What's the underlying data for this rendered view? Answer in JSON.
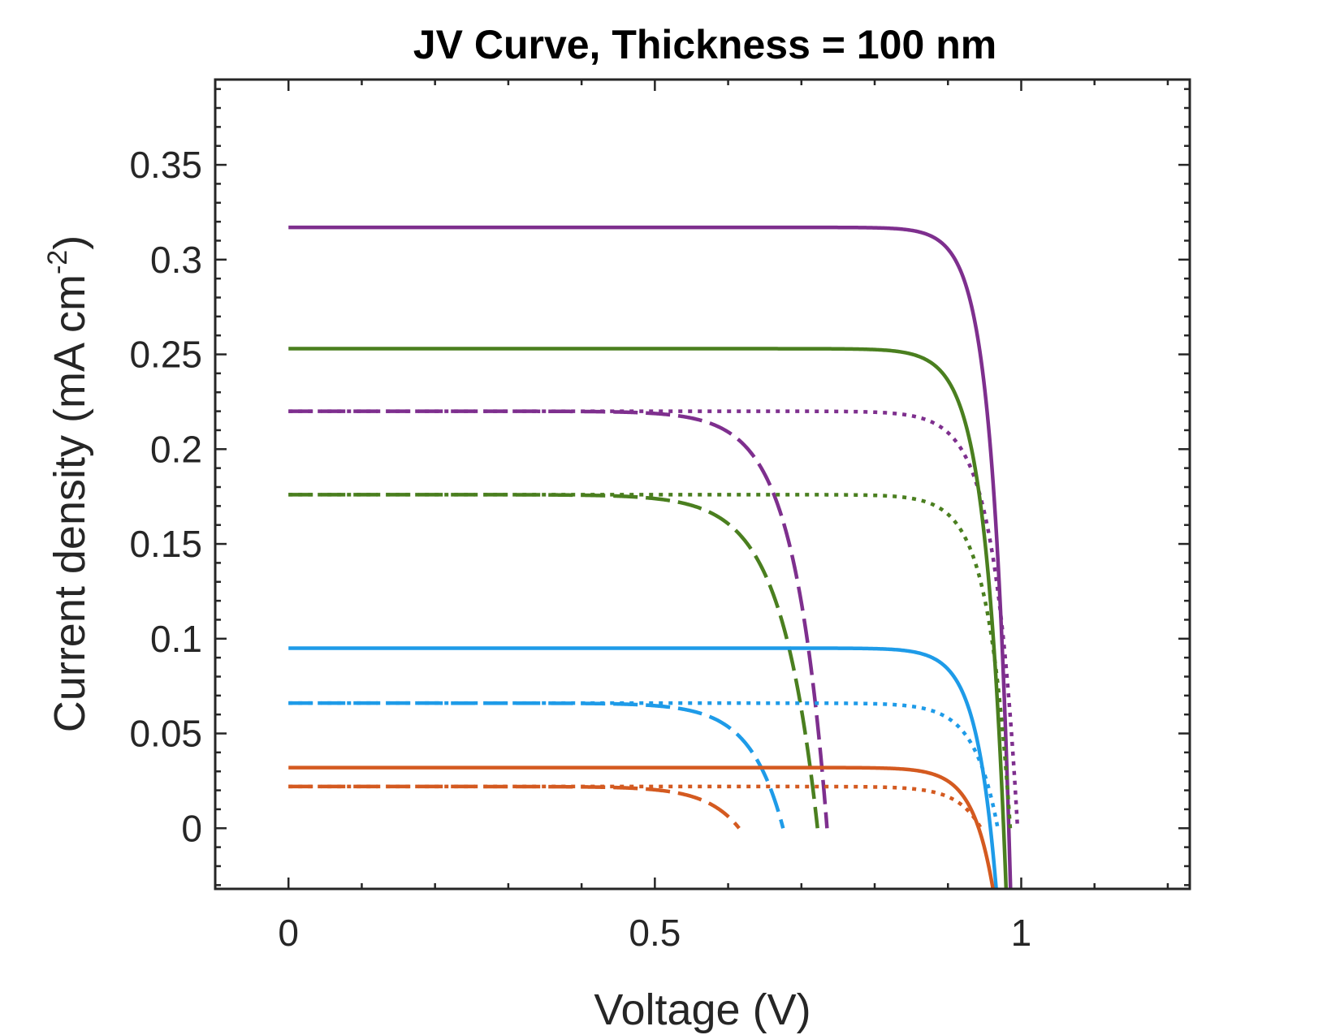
{
  "chart_data": {
    "type": "line",
    "title": "JV Curve, Thickness = 100 nm",
    "xlabel": "Voltage (V)",
    "ylabel_main": "Current density (mA cm",
    "ylabel_sup": "-2",
    "ylabel_close": ")",
    "xlim": [
      -0.1,
      1.23
    ],
    "ylim": [
      -0.032,
      0.395
    ],
    "xticks": [
      0,
      0.5,
      1
    ],
    "xtick_labels": [
      "0",
      "0.5",
      "1"
    ],
    "yticks": [
      0,
      0.05,
      0.1,
      0.15,
      0.2,
      0.25,
      0.3,
      0.35
    ],
    "ytick_labels": [
      "0",
      "0.05",
      "0.1",
      "0.15",
      "0.2",
      "0.25",
      "0.3",
      "0.35"
    ],
    "grid": false,
    "legend": false,
    "colors": {
      "purple": "#7e2f8e",
      "green": "#4a7f1f",
      "blue": "#1e9be8",
      "orange": "#d45a20"
    },
    "series": [
      {
        "color": "purple",
        "style": "solid",
        "jsc": 0.317,
        "voc": 0.983,
        "n": 0.025,
        "ymin": -0.032
      },
      {
        "color": "purple",
        "style": "dotted",
        "jsc": 0.22,
        "voc": 0.995,
        "n": 0.032,
        "ymin": 0
      },
      {
        "color": "purple",
        "style": "dashed",
        "jsc": 0.22,
        "voc": 0.735,
        "n": 0.045,
        "ymin": 0
      },
      {
        "color": "green",
        "style": "solid",
        "jsc": 0.253,
        "voc": 0.976,
        "n": 0.028,
        "ymin": -0.032
      },
      {
        "color": "green",
        "style": "dotted",
        "jsc": 0.176,
        "voc": 0.985,
        "n": 0.03,
        "ymin": 0
      },
      {
        "color": "green",
        "style": "dashed",
        "jsc": 0.176,
        "voc": 0.722,
        "n": 0.05,
        "ymin": 0
      },
      {
        "color": "blue",
        "style": "solid",
        "jsc": 0.095,
        "voc": 0.958,
        "n": 0.027,
        "ymin": -0.032
      },
      {
        "color": "blue",
        "style": "dotted",
        "jsc": 0.066,
        "voc": 0.968,
        "n": 0.032,
        "ymin": 0
      },
      {
        "color": "blue",
        "style": "dashed",
        "jsc": 0.066,
        "voc": 0.675,
        "n": 0.045,
        "ymin": 0
      },
      {
        "color": "orange",
        "style": "solid",
        "jsc": 0.032,
        "voc": 0.942,
        "n": 0.028,
        "ymin": -0.032
      },
      {
        "color": "orange",
        "style": "dotted",
        "jsc": 0.022,
        "voc": 0.945,
        "n": 0.032,
        "ymin": 0
      },
      {
        "color": "orange",
        "style": "dashed",
        "jsc": 0.022,
        "voc": 0.615,
        "n": 0.045,
        "ymin": 0
      }
    ]
  }
}
